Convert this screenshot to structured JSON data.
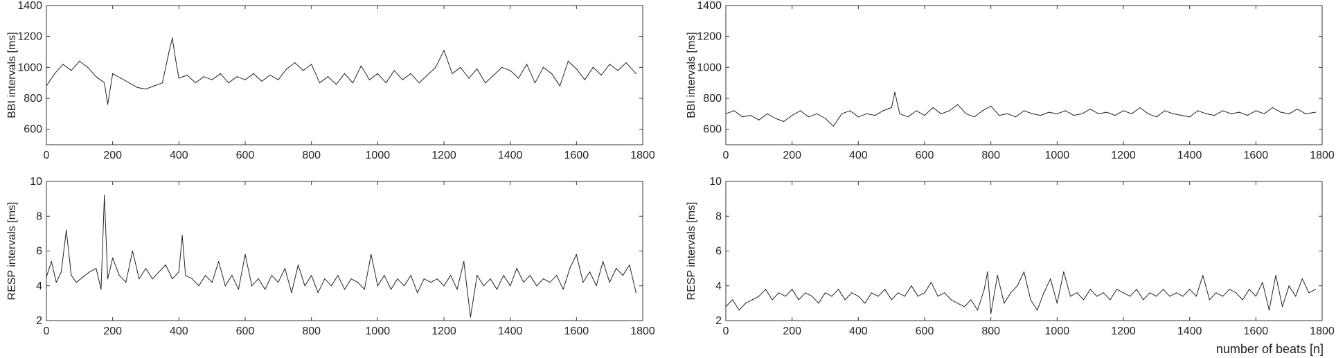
{
  "chart_data": [
    {
      "type": "line",
      "panel": "top-left",
      "ylabel": "BBI intervals [ms]",
      "xlabel": "",
      "xlim": [
        0,
        1800
      ],
      "ylim": [
        500,
        1400
      ],
      "xticks": [
        0,
        200,
        400,
        600,
        800,
        1000,
        1200,
        1400,
        1600,
        1800
      ],
      "yticks": [
        600,
        800,
        1000,
        1200,
        1400
      ],
      "series": [
        {
          "x": [
            0,
            25,
            50,
            75,
            100,
            125,
            150,
            175,
            185,
            200,
            225,
            250,
            275,
            300,
            325,
            350,
            370,
            380,
            390,
            400,
            425,
            450,
            475,
            500,
            525,
            550,
            575,
            600,
            625,
            650,
            675,
            700,
            725,
            750,
            775,
            800,
            825,
            850,
            875,
            900,
            925,
            950,
            975,
            1000,
            1025,
            1050,
            1075,
            1100,
            1125,
            1150,
            1175,
            1200,
            1225,
            1250,
            1275,
            1300,
            1325,
            1350,
            1375,
            1400,
            1425,
            1450,
            1475,
            1500,
            1525,
            1550,
            1575,
            1600,
            1625,
            1650,
            1675,
            1700,
            1725,
            1750,
            1780
          ],
          "values": [
            880,
            960,
            1020,
            980,
            1040,
            1000,
            940,
            900,
            760,
            960,
            930,
            900,
            870,
            860,
            880,
            900,
            1100,
            1190,
            1050,
            930,
            950,
            900,
            940,
            920,
            960,
            900,
            940,
            920,
            960,
            910,
            950,
            920,
            990,
            1030,
            980,
            1020,
            900,
            940,
            890,
            960,
            900,
            1010,
            920,
            960,
            900,
            980,
            920,
            960,
            900,
            950,
            1000,
            1110,
            960,
            1000,
            930,
            990,
            900,
            950,
            1000,
            980,
            930,
            1020,
            900,
            1000,
            960,
            880,
            1040,
            990,
            920,
            1000,
            950,
            1020,
            980,
            1030,
            960
          ]
        }
      ]
    },
    {
      "type": "line",
      "panel": "top-right",
      "ylabel": "BBI intervals [ms]",
      "xlabel": "",
      "xlim": [
        0,
        1800
      ],
      "ylim": [
        500,
        1400
      ],
      "xticks": [
        0,
        200,
        400,
        600,
        800,
        1000,
        1200,
        1400,
        1600,
        1800
      ],
      "yticks": [
        600,
        800,
        1000,
        1200,
        1400
      ],
      "series": [
        {
          "x": [
            0,
            25,
            50,
            75,
            100,
            125,
            150,
            175,
            200,
            225,
            250,
            275,
            300,
            325,
            350,
            375,
            400,
            425,
            450,
            475,
            500,
            510,
            525,
            550,
            575,
            600,
            625,
            650,
            675,
            700,
            725,
            750,
            775,
            800,
            825,
            850,
            875,
            900,
            925,
            950,
            975,
            1000,
            1025,
            1050,
            1075,
            1100,
            1125,
            1150,
            1175,
            1200,
            1225,
            1250,
            1275,
            1300,
            1325,
            1350,
            1375,
            1400,
            1425,
            1450,
            1475,
            1500,
            1525,
            1550,
            1575,
            1600,
            1625,
            1650,
            1675,
            1700,
            1725,
            1750,
            1780
          ],
          "values": [
            700,
            720,
            680,
            690,
            660,
            700,
            670,
            650,
            690,
            720,
            680,
            700,
            670,
            620,
            700,
            720,
            680,
            700,
            690,
            720,
            740,
            840,
            700,
            680,
            720,
            690,
            740,
            700,
            720,
            760,
            700,
            680,
            720,
            750,
            690,
            700,
            680,
            720,
            700,
            690,
            710,
            700,
            720,
            690,
            700,
            730,
            700,
            710,
            690,
            720,
            700,
            740,
            700,
            680,
            720,
            700,
            690,
            680,
            720,
            700,
            690,
            720,
            700,
            710,
            690,
            720,
            700,
            740,
            710,
            700,
            730,
            700,
            710
          ]
        }
      ]
    },
    {
      "type": "line",
      "panel": "bottom-left",
      "ylabel": "RESP intervals [ms]",
      "xlabel": "",
      "xlim": [
        0,
        1800
      ],
      "ylim": [
        2,
        10
      ],
      "xticks": [
        0,
        200,
        400,
        600,
        800,
        1000,
        1200,
        1400,
        1600,
        1800
      ],
      "yticks": [
        2,
        4,
        6,
        8,
        10
      ],
      "series": [
        {
          "x": [
            0,
            15,
            30,
            45,
            60,
            75,
            90,
            110,
            130,
            150,
            165,
            175,
            185,
            200,
            220,
            240,
            260,
            280,
            300,
            320,
            340,
            360,
            380,
            400,
            410,
            420,
            440,
            460,
            480,
            500,
            520,
            540,
            560,
            580,
            600,
            620,
            640,
            660,
            680,
            700,
            720,
            740,
            760,
            780,
            800,
            820,
            840,
            860,
            880,
            900,
            920,
            940,
            960,
            980,
            1000,
            1020,
            1040,
            1060,
            1080,
            1100,
            1120,
            1140,
            1160,
            1180,
            1200,
            1220,
            1240,
            1260,
            1280,
            1300,
            1320,
            1340,
            1360,
            1380,
            1400,
            1420,
            1440,
            1460,
            1480,
            1500,
            1520,
            1540,
            1560,
            1580,
            1600,
            1620,
            1640,
            1660,
            1680,
            1700,
            1720,
            1740,
            1760,
            1780
          ],
          "values": [
            4.5,
            5.4,
            4.2,
            4.8,
            7.2,
            4.6,
            4.2,
            4.5,
            4.8,
            5.0,
            3.8,
            9.2,
            4.4,
            5.6,
            4.6,
            4.2,
            6.0,
            4.4,
            5.0,
            4.4,
            4.8,
            5.2,
            4.4,
            4.8,
            6.9,
            4.6,
            4.4,
            4.0,
            4.6,
            4.2,
            5.4,
            4.0,
            4.6,
            3.8,
            5.8,
            4.0,
            4.4,
            3.8,
            4.6,
            4.2,
            5.0,
            3.6,
            5.2,
            4.0,
            4.6,
            3.6,
            4.4,
            4.0,
            4.6,
            3.8,
            4.4,
            4.2,
            3.8,
            5.8,
            4.0,
            4.6,
            3.8,
            4.4,
            4.0,
            4.6,
            3.6,
            4.4,
            4.2,
            4.4,
            4.0,
            4.6,
            3.8,
            5.4,
            2.2,
            4.6,
            4.0,
            4.4,
            3.8,
            4.6,
            4.0,
            5.0,
            4.2,
            4.6,
            4.0,
            4.4,
            4.2,
            4.6,
            3.8,
            5.0,
            5.8,
            4.2,
            4.8,
            4.0,
            5.4,
            4.2,
            5.0,
            4.6,
            5.2,
            3.6
          ]
        }
      ]
    },
    {
      "type": "line",
      "panel": "bottom-right",
      "ylabel": "RESP intervals [ms]",
      "xlabel": "number of beats [n]",
      "xlim": [
        0,
        1800
      ],
      "ylim": [
        2,
        10
      ],
      "xticks": [
        0,
        200,
        400,
        600,
        800,
        1000,
        1200,
        1400,
        1600,
        1800
      ],
      "yticks": [
        2,
        4,
        6,
        8,
        10
      ],
      "series": [
        {
          "x": [
            0,
            20,
            40,
            60,
            80,
            100,
            120,
            140,
            160,
            180,
            200,
            220,
            240,
            260,
            280,
            300,
            320,
            340,
            360,
            380,
            400,
            420,
            440,
            460,
            480,
            500,
            520,
            540,
            560,
            580,
            600,
            620,
            640,
            660,
            680,
            700,
            720,
            740,
            760,
            780,
            790,
            800,
            820,
            840,
            860,
            880,
            900,
            920,
            940,
            960,
            980,
            1000,
            1020,
            1040,
            1060,
            1080,
            1100,
            1120,
            1140,
            1160,
            1180,
            1200,
            1220,
            1240,
            1260,
            1280,
            1300,
            1320,
            1340,
            1360,
            1380,
            1400,
            1420,
            1440,
            1460,
            1480,
            1500,
            1520,
            1540,
            1560,
            1580,
            1600,
            1620,
            1640,
            1660,
            1680,
            1700,
            1720,
            1740,
            1760,
            1780
          ],
          "values": [
            2.8,
            3.2,
            2.6,
            3.0,
            3.2,
            3.4,
            3.8,
            3.2,
            3.6,
            3.4,
            3.8,
            3.2,
            3.6,
            3.4,
            3.0,
            3.6,
            3.4,
            3.8,
            3.2,
            3.6,
            3.4,
            3.0,
            3.6,
            3.4,
            3.8,
            3.2,
            3.6,
            3.4,
            4.0,
            3.4,
            3.6,
            4.2,
            3.4,
            3.6,
            3.2,
            3.0,
            2.8,
            3.2,
            2.6,
            3.8,
            4.8,
            2.4,
            4.6,
            3.0,
            3.6,
            4.0,
            4.8,
            3.2,
            2.6,
            3.6,
            4.4,
            3.0,
            4.8,
            3.4,
            3.6,
            3.2,
            3.8,
            3.4,
            3.6,
            3.2,
            3.8,
            3.6,
            3.4,
            3.8,
            3.2,
            3.6,
            3.4,
            3.8,
            3.4,
            3.6,
            3.4,
            3.8,
            3.4,
            4.6,
            3.2,
            3.6,
            3.4,
            3.8,
            3.6,
            3.2,
            3.8,
            3.4,
            4.2,
            2.6,
            4.6,
            2.8,
            4.0,
            3.4,
            4.4,
            3.6,
            3.8
          ]
        }
      ]
    }
  ]
}
